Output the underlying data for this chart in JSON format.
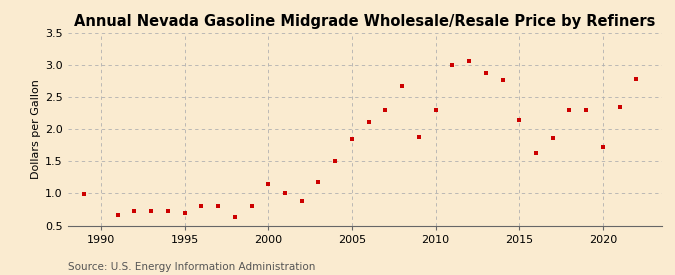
{
  "title": "Annual Nevada Gasoline Midgrade Wholesale/Resale Price by Refiners",
  "ylabel": "Dollars per Gallon",
  "source": "Source: U.S. Energy Information Administration",
  "background_color": "#faebd0",
  "marker_color": "#cc0000",
  "years": [
    1989,
    1991,
    1992,
    1993,
    1994,
    1995,
    1996,
    1997,
    1998,
    1999,
    2000,
    2001,
    2002,
    2003,
    2004,
    2005,
    2006,
    2007,
    2008,
    2009,
    2010,
    2011,
    2012,
    2013,
    2014,
    2015,
    2016,
    2017,
    2018,
    2019,
    2020,
    2021,
    2022
  ],
  "values": [
    0.99,
    0.66,
    0.73,
    0.72,
    0.72,
    0.69,
    0.81,
    0.8,
    0.63,
    0.8,
    1.14,
    1.01,
    0.88,
    1.18,
    1.5,
    1.85,
    2.12,
    2.3,
    2.68,
    1.88,
    2.3,
    3.0,
    3.06,
    2.88,
    2.77,
    2.14,
    1.63,
    1.87,
    2.3,
    2.3,
    1.72,
    2.35,
    2.78
  ],
  "xlim": [
    1988.0,
    2023.5
  ],
  "ylim": [
    0.5,
    3.5
  ],
  "yticks": [
    0.5,
    1.0,
    1.5,
    2.0,
    2.5,
    3.0,
    3.5
  ],
  "xticks": [
    1990,
    1995,
    2000,
    2005,
    2010,
    2015,
    2020
  ],
  "vgrid_at": [
    1990,
    1995,
    2000,
    2005,
    2010,
    2015,
    2020
  ],
  "title_fontsize": 10.5,
  "label_fontsize": 8,
  "tick_fontsize": 8,
  "source_fontsize": 7.5
}
